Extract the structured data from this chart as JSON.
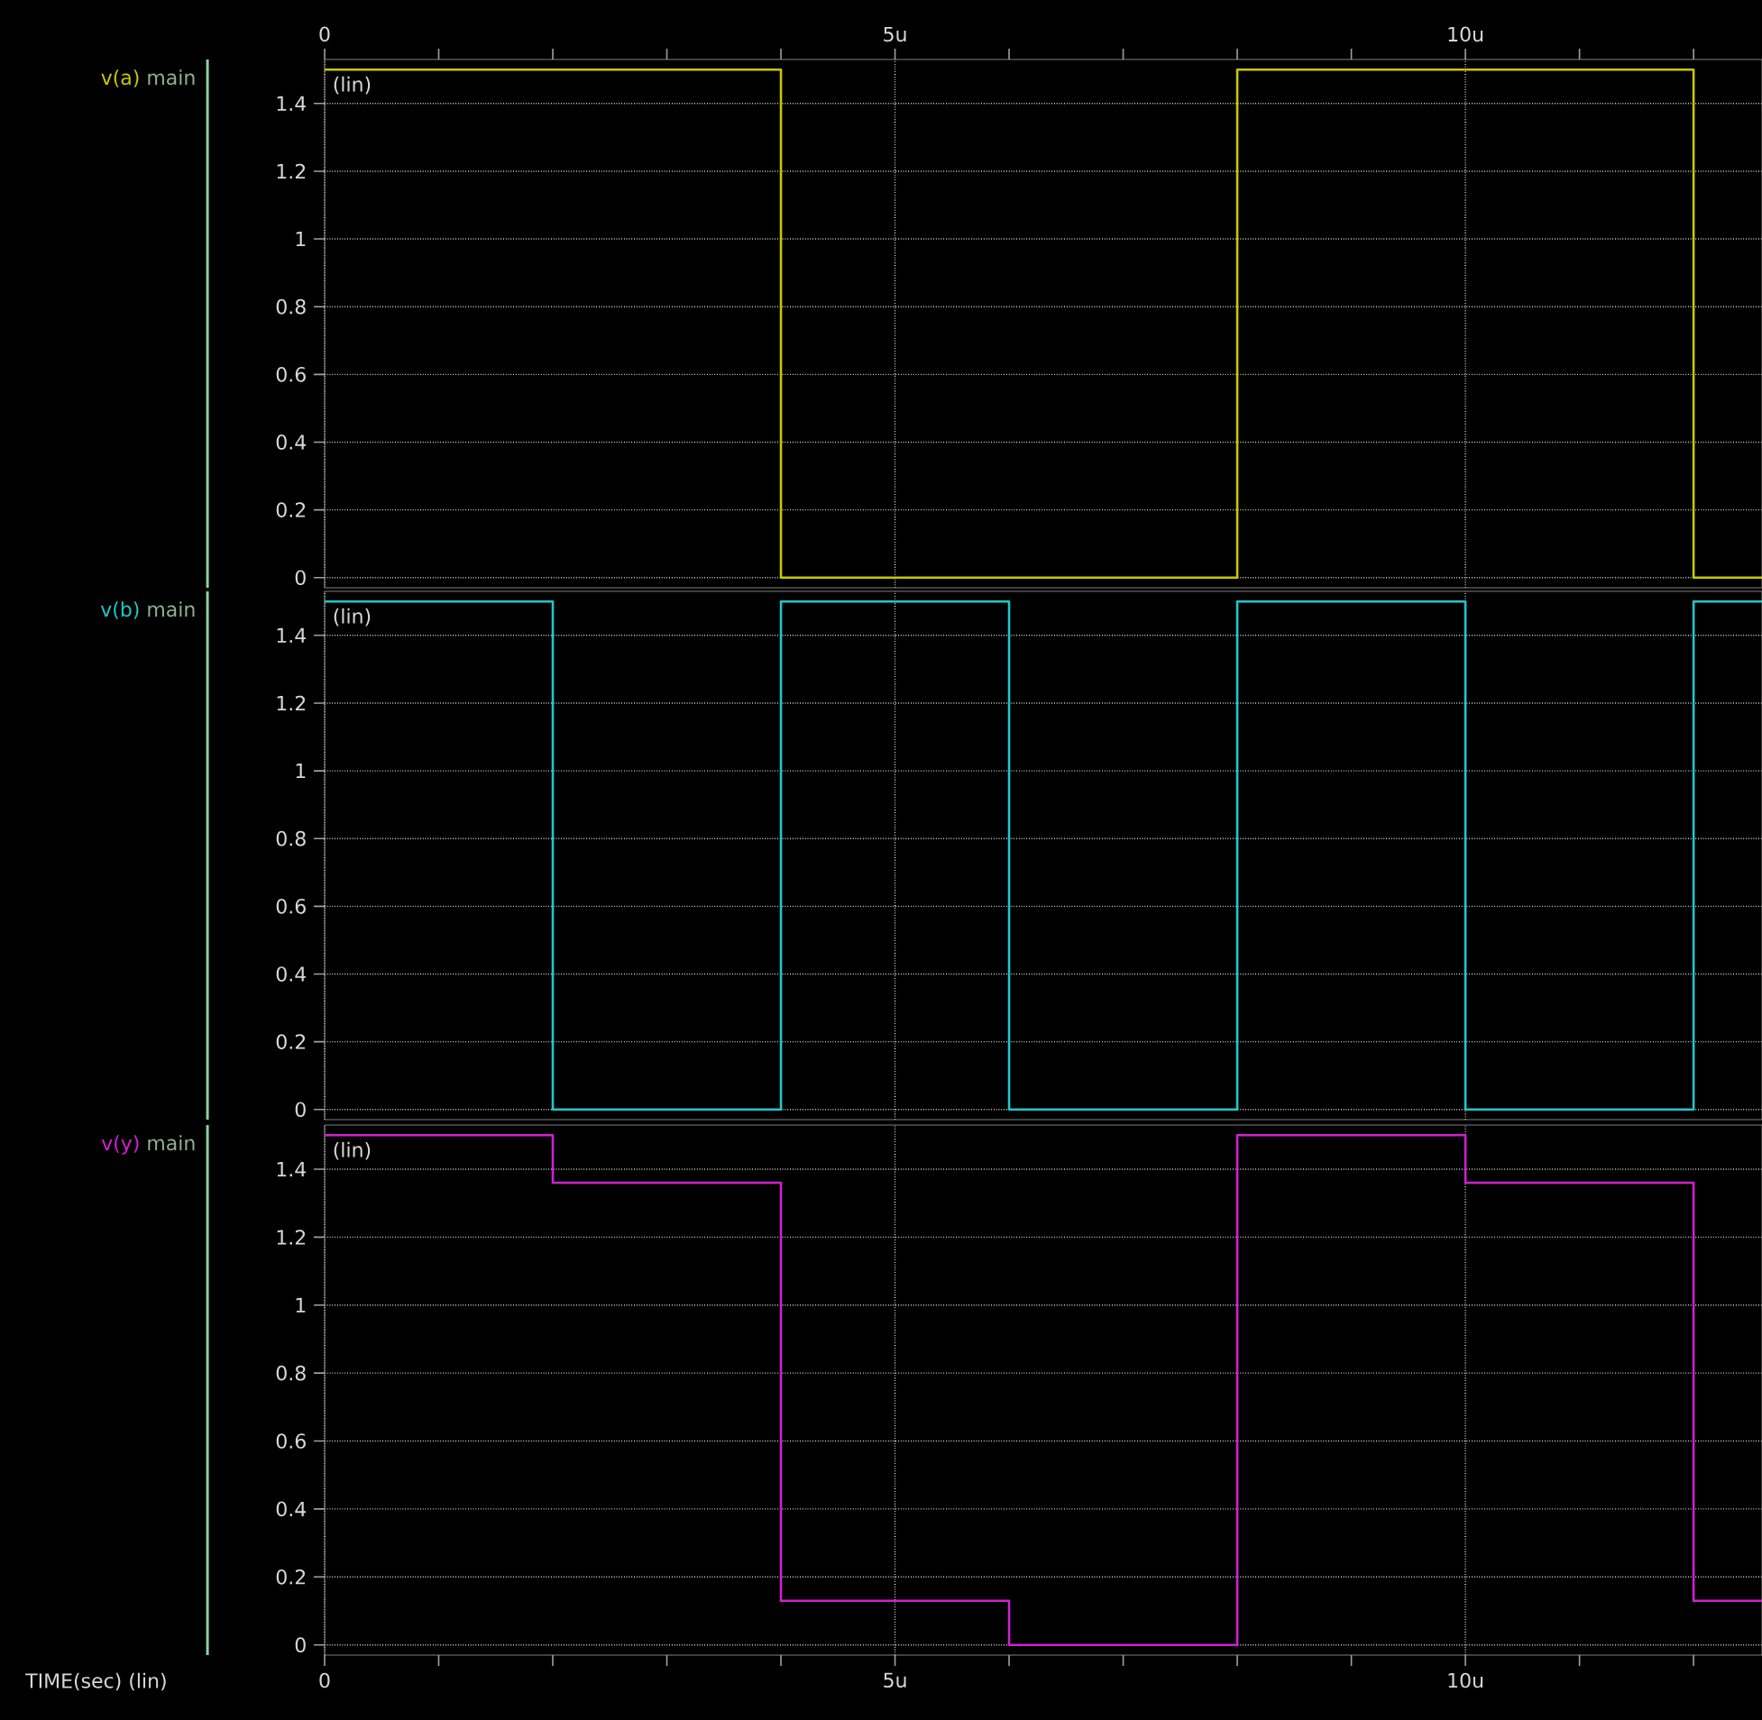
{
  "chart_data": [
    {
      "type": "step",
      "x": [
        0,
        2,
        4,
        6,
        8,
        10,
        12,
        12.6
      ],
      "xlim": [
        0,
        12.6
      ],
      "ylim": [
        -0.03,
        1.53
      ],
      "series": [
        {
          "name": "v(a)",
          "color": "#c8c800",
          "values": [
            1.5,
            1.5,
            0,
            0,
            1.5,
            1.5,
            0,
            0
          ]
        }
      ],
      "annotations": [
        "main",
        "(lin)"
      ],
      "xticks": [
        {
          "value": 0,
          "label": "0"
        },
        {
          "value": 1,
          "label": null
        },
        {
          "value": 2,
          "label": null
        },
        {
          "value": 3,
          "label": null
        },
        {
          "value": 4,
          "label": null
        },
        {
          "value": 5,
          "label": "5u"
        },
        {
          "value": 6,
          "label": null
        },
        {
          "value": 7,
          "label": null
        },
        {
          "value": 8,
          "label": null
        },
        {
          "value": 9,
          "label": null
        },
        {
          "value": 10,
          "label": "10u"
        },
        {
          "value": 11,
          "label": null
        },
        {
          "value": 12,
          "label": null
        }
      ],
      "yticks": [
        0,
        0.2,
        0.4,
        0.6,
        0.8,
        1,
        1.2,
        1.4
      ],
      "grid": true
    },
    {
      "type": "step",
      "x": [
        0,
        2,
        4,
        6,
        8,
        10,
        12,
        12.6
      ],
      "xlim": [
        0,
        12.6
      ],
      "ylim": [
        -0.03,
        1.53
      ],
      "series": [
        {
          "name": "v(b)",
          "color": "#20c8c8",
          "values": [
            1.5,
            0,
            1.5,
            0,
            1.5,
            0,
            1.5,
            1.5
          ]
        }
      ],
      "annotations": [
        "main",
        "(lin)"
      ],
      "xticks": [
        {
          "value": 0,
          "label": null
        },
        {
          "value": 5,
          "label": null
        },
        {
          "value": 10,
          "label": null
        }
      ],
      "yticks": [
        0,
        0.2,
        0.4,
        0.6,
        0.8,
        1,
        1.2,
        1.4
      ],
      "grid": true,
      "tick_labels": "y"
    },
    {
      "type": "step",
      "x": [
        0,
        2,
        4,
        6,
        8,
        10,
        12,
        12.6
      ],
      "xlim": [
        0,
        12.6
      ],
      "ylim": [
        -0.03,
        1.53
      ],
      "series": [
        {
          "name": "v(y)",
          "color": "#d020d0",
          "values": [
            1.5,
            1.36,
            0.13,
            0,
            1.5,
            1.36,
            0.13,
            0.13
          ]
        }
      ],
      "annotations": [
        "main",
        "(lin)"
      ],
      "xlabel": "TIME(sec) (lin)",
      "xticks": [
        {
          "value": 0,
          "label": "0"
        },
        {
          "value": 1,
          "label": null
        },
        {
          "value": 2,
          "label": null
        },
        {
          "value": 3,
          "label": null
        },
        {
          "value": 4,
          "label": null
        },
        {
          "value": 5,
          "label": "5u"
        },
        {
          "value": 6,
          "label": null
        },
        {
          "value": 7,
          "label": null
        },
        {
          "value": 8,
          "label": null
        },
        {
          "value": 9,
          "label": null
        },
        {
          "value": 10,
          "label": "10u"
        },
        {
          "value": 11,
          "label": null
        },
        {
          "value": 12,
          "label": null
        }
      ],
      "yticks": [
        0,
        0.2,
        0.4,
        0.6,
        0.8,
        1,
        1.2,
        1.4
      ],
      "grid": true
    }
  ]
}
